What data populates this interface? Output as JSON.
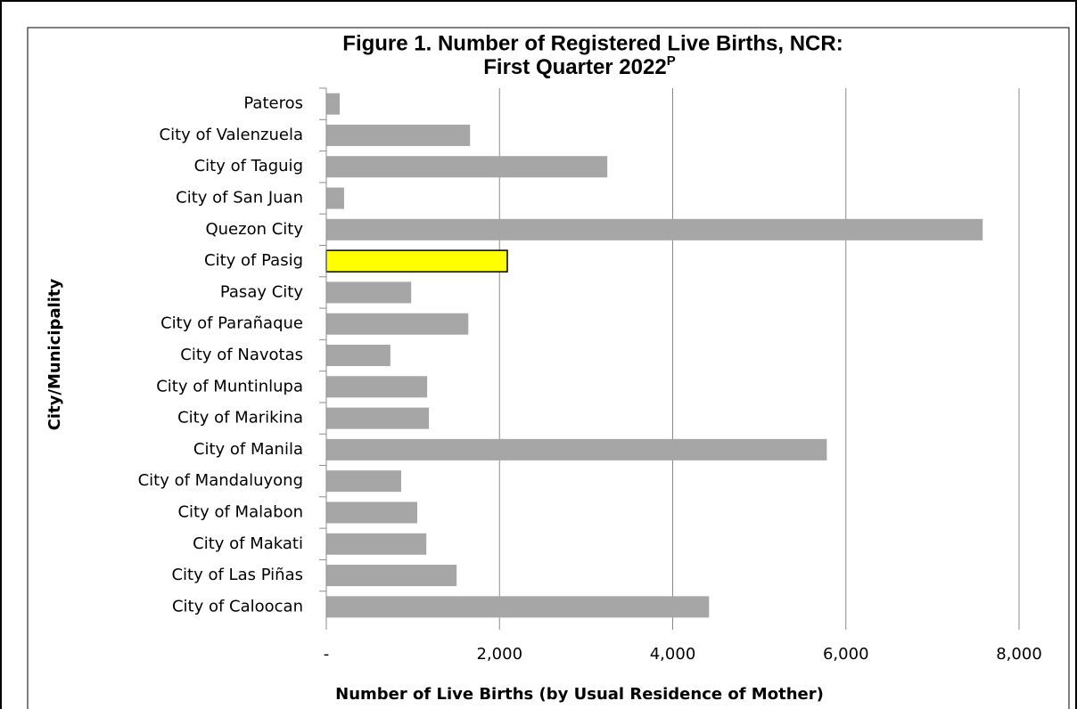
{
  "chart_data": {
    "type": "barh",
    "title": [
      "Figure 1.  Number of Registered Live Births, NCR:",
      "First Quarter 2022"
    ],
    "title_superscript": "P",
    "xlabel": "Number of Live Births (by Usual Residence of Mother)",
    "ylabel": "City/Municipality",
    "categories": [
      "Pateros",
      "City of Valenzuela",
      "City of Taguig",
      "City of San Juan",
      "Quezon City",
      "City of Pasig",
      "Pasay City",
      "City of Parañaque",
      "City of Navotas",
      "City of Muntinlupa",
      "City of Marikina",
      "City of Manila",
      "City of Mandaluyong",
      "City of Malabon",
      "City of Makati",
      "City of Las Piñas",
      "City of Caloocan"
    ],
    "values": [
      155,
      1660,
      3245,
      205,
      7580,
      2090,
      980,
      1640,
      740,
      1165,
      1185,
      5780,
      865,
      1050,
      1155,
      1505,
      4420
    ],
    "colors": [
      "#a6a6a6",
      "#a6a6a6",
      "#a6a6a6",
      "#a6a6a6",
      "#a6a6a6",
      "#ffff00",
      "#a6a6a6",
      "#a6a6a6",
      "#a6a6a6",
      "#a6a6a6",
      "#a6a6a6",
      "#a6a6a6",
      "#a6a6a6",
      "#a6a6a6",
      "#a6a6a6",
      "#a6a6a6",
      "#a6a6a6"
    ],
    "xlim": [
      0,
      8000
    ],
    "xticks": [
      {
        "value": 0,
        "label": "-"
      },
      {
        "value": 2000,
        "label": "2,000"
      },
      {
        "value": 4000,
        "label": "4,000"
      },
      {
        "value": 6000,
        "label": "6,000"
      },
      {
        "value": 8000,
        "label": "8,000"
      }
    ],
    "grid": true
  }
}
